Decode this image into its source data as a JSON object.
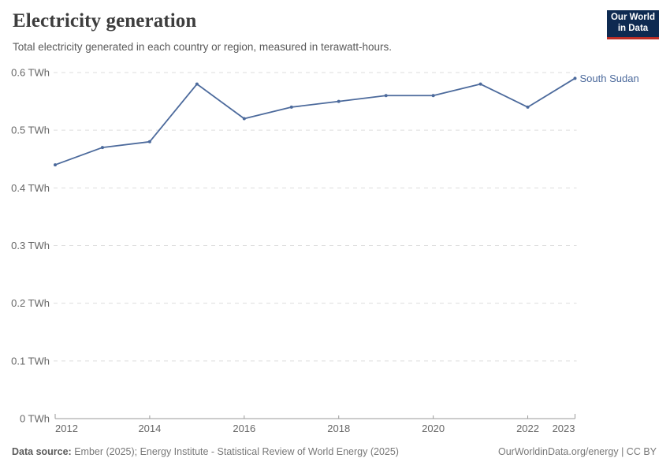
{
  "header": {
    "title": "Electricity generation",
    "subtitle": "Total electricity generated in each country or region, measured in terawatt-hours.",
    "logo_line1": "Our World",
    "logo_line2": "in Data"
  },
  "chart_data": {
    "type": "line",
    "title": "Electricity generation",
    "unit": "TWh",
    "x": [
      2012,
      2013,
      2014,
      2015,
      2016,
      2017,
      2018,
      2019,
      2020,
      2021,
      2022,
      2023
    ],
    "series": [
      {
        "name": "South Sudan",
        "color": "#4C6A9C",
        "values": [
          0.44,
          0.47,
          0.48,
          0.58,
          0.52,
          0.54,
          0.55,
          0.56,
          0.56,
          0.58,
          0.54,
          0.59
        ]
      }
    ],
    "x_ticks": [
      2012,
      2014,
      2016,
      2018,
      2020,
      2022,
      2023
    ],
    "y_ticks": [
      0,
      0.1,
      0.2,
      0.3,
      0.4,
      0.5,
      0.6
    ],
    "y_tick_suffix": " TWh",
    "xlim": [
      2012,
      2023
    ],
    "ylim": [
      0,
      0.6
    ],
    "grid": true,
    "legend_position": "end-of-line",
    "colors": {
      "gridline": "#dddddd",
      "axis": "#999999",
      "tick_label": "#666666"
    }
  },
  "footer": {
    "data_source_label": "Data source:",
    "data_source_text": "Ember (2025); Energy Institute - Statistical Review of World Energy (2025)",
    "attribution": "OurWorldinData.org/energy | CC BY"
  }
}
